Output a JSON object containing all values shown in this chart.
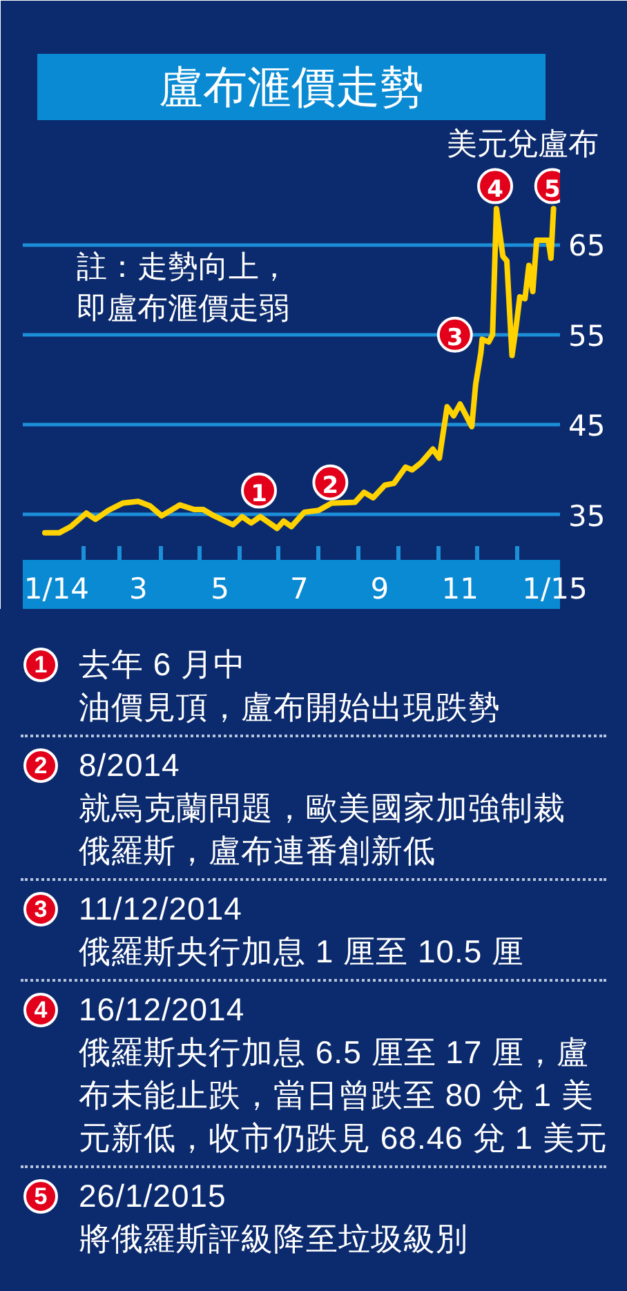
{
  "chart_data": {
    "type": "line",
    "title": "盧布滙價走勢",
    "ylabel": "美元兌盧布",
    "x": [
      "2014-01-02",
      "2014-01-13",
      "2014-01-22",
      "2014-02-03",
      "2014-02-10",
      "2014-02-20",
      "2014-03-03",
      "2014-03-15",
      "2014-03-24",
      "2014-04-02",
      "2014-04-16",
      "2014-04-27",
      "2014-05-04",
      "2014-05-11",
      "2014-05-27",
      "2014-06-03",
      "2014-06-10",
      "2014-06-17",
      "2014-06-30",
      "2014-07-05",
      "2014-07-11",
      "2014-07-21",
      "2014-08-01",
      "2014-08-11",
      "2014-08-29",
      "2014-09-05",
      "2014-09-12",
      "2014-09-21",
      "2014-09-28",
      "2014-10-07",
      "2014-10-12",
      "2014-10-19",
      "2014-10-28",
      "2014-11-02",
      "2014-11-08",
      "2014-11-13",
      "2014-11-18",
      "2014-11-27",
      "2014-11-30",
      "2014-12-04",
      "2014-12-05",
      "2014-12-10",
      "2014-12-13",
      "2014-12-16",
      "2014-12-21",
      "2014-12-24",
      "2014-12-28",
      "2014-12-31",
      "2015-01-03",
      "2015-01-07",
      "2015-01-10",
      "2015-01-13",
      "2015-01-16",
      "2015-01-25",
      "2015-01-27",
      "2015-01-29"
    ],
    "series": [
      {
        "color": "#ffd200",
        "values": [
          33.0,
          33.0,
          33.7,
          35.2,
          34.5,
          35.5,
          36.3,
          36.5,
          36.0,
          34.9,
          36.1,
          35.6,
          35.6,
          35.0,
          33.9,
          34.8,
          34.1,
          34.8,
          33.5,
          34.3,
          33.7,
          35.3,
          35.5,
          36.3,
          36.4,
          37.5,
          36.9,
          38.3,
          38.5,
          40.3,
          40.0,
          40.8,
          42.3,
          41.3,
          47.0,
          46.0,
          47.3,
          44.8,
          49.5,
          53.0,
          54.5,
          54.2,
          55.0,
          69.0,
          63.7,
          63.2,
          52.7,
          55.7,
          59.2,
          59.0,
          62.7,
          59.8,
          65.5,
          65.5,
          63.5,
          69.0
        ]
      }
    ],
    "xlim": [
      "2013-12-16",
      "2015-02-03"
    ],
    "xticks": [
      {
        "value": "2014-01-11",
        "label": "1/14"
      },
      {
        "value": "2014-02-01",
        "label": null
      },
      {
        "value": "2014-03-01",
        "label": null
      },
      {
        "value": "2014-03-15",
        "label": "3"
      },
      {
        "value": "2014-04-01",
        "label": null
      },
      {
        "value": "2014-05-01",
        "label": null
      },
      {
        "value": "2014-05-17",
        "label": "5"
      },
      {
        "value": "2014-06-01",
        "label": null
      },
      {
        "value": "2014-07-01",
        "label": null
      },
      {
        "value": "2014-07-17",
        "label": "7"
      },
      {
        "value": "2014-08-01",
        "label": null
      },
      {
        "value": "2014-09-01",
        "label": null
      },
      {
        "value": "2014-09-17",
        "label": "9"
      },
      {
        "value": "2014-10-01",
        "label": null
      },
      {
        "value": "2014-11-01",
        "label": null
      },
      {
        "value": "2014-11-18",
        "label": "11"
      },
      {
        "value": "2014-12-01",
        "label": null
      },
      {
        "value": "2015-01-01",
        "label": null
      },
      {
        "value": "2015-01-30",
        "label": "1/15"
      }
    ],
    "ylim": [
      30,
      74
    ],
    "yticks": [
      35,
      45,
      55,
      65
    ],
    "grid": "y",
    "annotations": [
      {
        "text": "1",
        "x": "2014-06-16",
        "y": 37.7
      },
      {
        "text": "2",
        "x": "2014-08-10",
        "y": 38.6
      },
      {
        "text": "3",
        "x": "2014-11-14",
        "y": 55.0
      },
      {
        "text": "4",
        "x": "2014-12-15",
        "y": 71.5
      },
      {
        "text": "5",
        "x": "2015-01-28",
        "y": 71.5
      },
      "註：走勢向上，即盧布滙價走弱",
      "去年 6 月中",
      "油價見頂，盧布開始出現跌勢",
      "8/2014",
      "就烏克蘭問題，歐美國家加強制裁俄羅斯，盧布連番創新低",
      "11/12/2014",
      "俄羅斯央行加息 1 厘至 10.5 厘",
      "16/12/2014",
      "俄羅斯央行加息 6.5 厘至 17 厘，盧布未能止跌，當日曾跌至 80 兌 1 美元新低，收市仍跌見 68.46 兌 1 美元",
      "26/1/2015",
      "將俄羅斯評級降至垃圾級別"
    ]
  }
}
